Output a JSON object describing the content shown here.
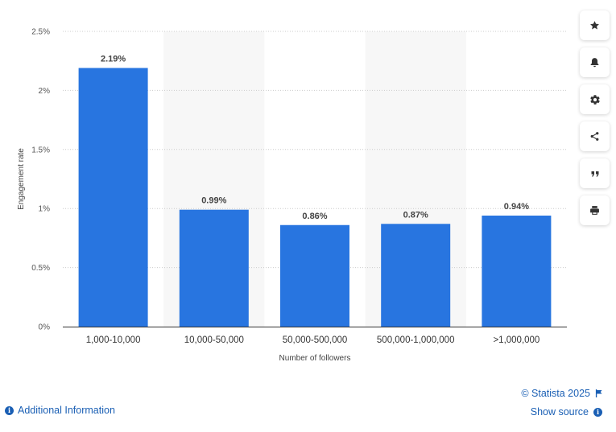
{
  "chart_data": {
    "type": "bar",
    "title": "",
    "xlabel": "Number of followers",
    "ylabel": "Engagement rate",
    "categories": [
      "1,000-10,000",
      "10,000-50,000",
      "50,000-500,000",
      "500,000-1,000,000",
      ">1,000,000"
    ],
    "values": [
      2.19,
      0.99,
      0.86,
      0.87,
      0.94
    ],
    "value_labels": [
      "2.19%",
      "0.99%",
      "0.86%",
      "0.87%",
      "0.94%"
    ],
    "ylim": [
      0,
      2.5
    ],
    "yticks": [
      0,
      0.5,
      1,
      1.5,
      2,
      2.5
    ],
    "ytick_labels": [
      "0%",
      "0.5%",
      "1%",
      "1.5%",
      "2%",
      "2.5%"
    ],
    "bar_color": "#2875e0",
    "band_color": "#f7f7f7",
    "grid": true
  },
  "sidebar": {
    "buttons": [
      {
        "name": "favorite",
        "icon": "star-icon"
      },
      {
        "name": "notification",
        "icon": "bell-icon"
      },
      {
        "name": "settings",
        "icon": "gear-icon"
      },
      {
        "name": "share",
        "icon": "share-icon"
      },
      {
        "name": "cite",
        "icon": "quote-icon"
      },
      {
        "name": "print",
        "icon": "printer-icon"
      }
    ]
  },
  "footer": {
    "additional_info": "Additional Information",
    "copyright": "© Statista 2025",
    "show_source": "Show source"
  },
  "colors": {
    "link": "#1a5fb4",
    "icon": "#333333"
  }
}
